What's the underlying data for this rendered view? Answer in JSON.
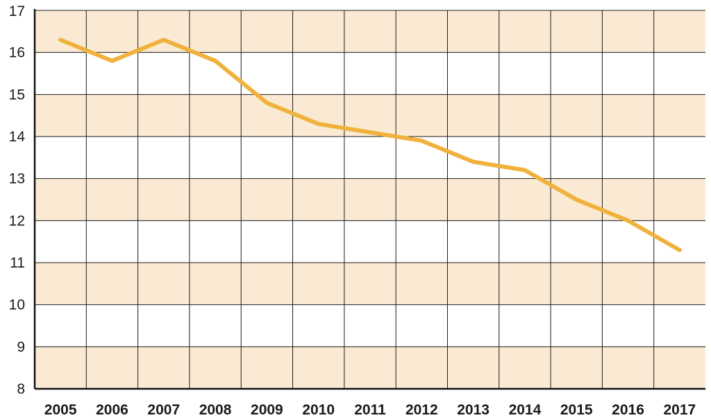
{
  "chart_data": {
    "type": "line",
    "title": "",
    "xlabel": "",
    "ylabel": "",
    "categories": [
      "2005",
      "2006",
      "2007",
      "2008",
      "2009",
      "2010",
      "2011",
      "2012",
      "2013",
      "2014",
      "2015",
      "2016",
      "2017"
    ],
    "series": [
      {
        "values": [
          16.3,
          15.8,
          16.3,
          15.8,
          14.8,
          14.3,
          14.1,
          13.9,
          13.4,
          13.2,
          12.5,
          12.0,
          11.3
        ]
      }
    ],
    "yticks": [
      "8",
      "9",
      "10",
      "11",
      "12",
      "13",
      "14",
      "15",
      "16",
      "17"
    ],
    "ylim": [
      8,
      17
    ],
    "grid": true,
    "band_colors": [
      "#fbead3",
      "#ffffff"
    ],
    "line_color": "#f0b23d",
    "grid_color": "#1a1a1a"
  }
}
